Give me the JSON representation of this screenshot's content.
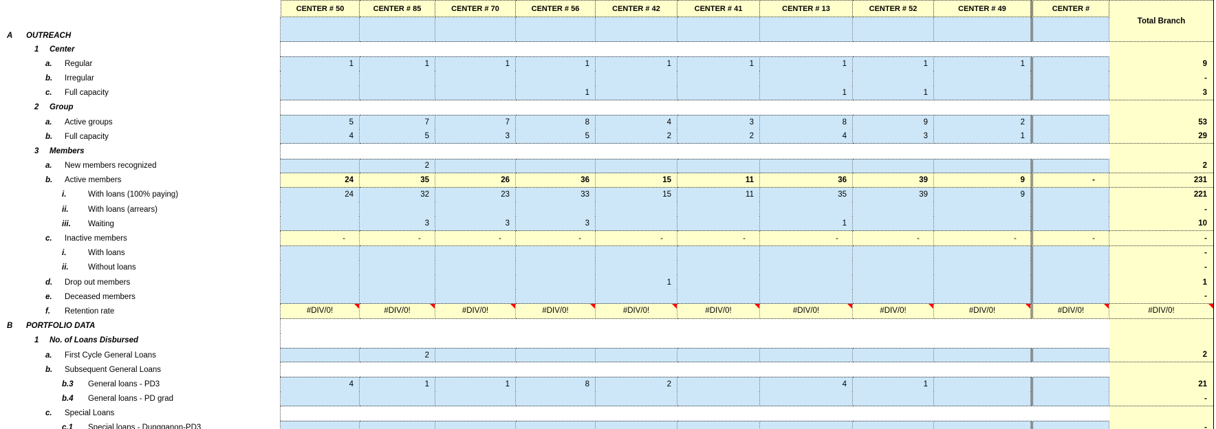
{
  "sheet": {
    "type_hint": "spreadsheet-report",
    "total_header": "Total Branch",
    "error_value": "#DIV/0!",
    "colors": {
      "cell_blue": "#CDE7F9",
      "cell_yellow": "#FFFFCC",
      "comment_red": "#FF0000"
    },
    "columns": [
      "CENTER # 50",
      "CENTER # 85",
      "CENTER # 70",
      "CENTER # 56",
      "CENTER # 42",
      "CENTER # 41",
      "CENTER # 13",
      "CENTER # 52",
      "CENTER # 49",
      "CENTER #"
    ],
    "rows": [
      {
        "m": "A",
        "l": "OUTREACH",
        "lv": 0,
        "bg": "b",
        "band": true,
        "v": [
          "",
          "",
          "",
          "",
          "",
          "",
          "",
          "",
          "",
          ""
        ],
        "t": ""
      },
      {
        "m": "1",
        "l": "Center",
        "lv": 1,
        "bg": "w",
        "t": ""
      },
      {
        "m": "a.",
        "l": "Regular",
        "lv": 2,
        "bg": "b",
        "v": [
          "1",
          "1",
          "1",
          "1",
          "1",
          "1",
          "1",
          "1",
          "1",
          ""
        ],
        "t": "9"
      },
      {
        "m": "b.",
        "l": "Irregular",
        "lv": 2,
        "bg": "b",
        "v": [
          "",
          "",
          "",
          "",
          "",
          "",
          "",
          "",
          "",
          ""
        ],
        "t": "-"
      },
      {
        "m": "c.",
        "l": "Full capacity",
        "lv": 2,
        "bg": "b",
        "v": [
          "",
          "",
          "",
          "1",
          "",
          "",
          "1",
          "1",
          "",
          ""
        ],
        "t": "3"
      },
      {
        "m": "2",
        "l": "Group",
        "lv": 1,
        "bg": "w",
        "t": ""
      },
      {
        "m": "a.",
        "l": "Active groups",
        "lv": 2,
        "bg": "b",
        "v": [
          "5",
          "7",
          "7",
          "8",
          "4",
          "3",
          "8",
          "9",
          "2",
          ""
        ],
        "t": "53"
      },
      {
        "m": "b.",
        "l": "Full capacity",
        "lv": 2,
        "bg": "b",
        "v": [
          "4",
          "5",
          "3",
          "5",
          "2",
          "2",
          "4",
          "3",
          "1",
          ""
        ],
        "t": "29"
      },
      {
        "m": "3",
        "l": "Members",
        "lv": 1,
        "bg": "w",
        "t": ""
      },
      {
        "m": "a.",
        "l": "New members recognized",
        "lv": 2,
        "bg": "b",
        "v": [
          "",
          "2",
          "",
          "",
          "",
          "",
          "",
          "",
          "",
          ""
        ],
        "t": "2"
      },
      {
        "m": "b.",
        "l": "Active members",
        "lv": 2,
        "bg": "y",
        "bold": true,
        "v": [
          "24",
          "35",
          "26",
          "36",
          "15",
          "11",
          "36",
          "39",
          "9",
          "-"
        ],
        "t": "231"
      },
      {
        "m": "i.",
        "l": "With loans (100% paying)",
        "lv": 3,
        "bg": "b",
        "v": [
          "24",
          "32",
          "23",
          "33",
          "15",
          "11",
          "35",
          "39",
          "9",
          ""
        ],
        "t": "221"
      },
      {
        "m": "ii.",
        "l": "With loans (arrears)",
        "lv": 3,
        "bg": "b",
        "v": [
          "",
          "",
          "",
          "",
          "",
          "",
          "",
          "",
          "",
          ""
        ],
        "t": "-"
      },
      {
        "m": "iii.",
        "l": "Waiting",
        "lv": 3,
        "bg": "b",
        "v": [
          "",
          "3",
          "3",
          "3",
          "",
          "",
          "1",
          "",
          "",
          ""
        ],
        "t": "10"
      },
      {
        "m": "c.",
        "l": "Inactive members",
        "lv": 2,
        "bg": "y",
        "v": [
          "-",
          "-",
          "-",
          "-",
          "-",
          "-",
          "-",
          "-",
          "-",
          "-"
        ],
        "t": "-"
      },
      {
        "m": "i.",
        "l": "With loans",
        "lv": 3,
        "bg": "b",
        "v": [
          "",
          "",
          "",
          "",
          "",
          "",
          "",
          "",
          "",
          ""
        ],
        "t": "-"
      },
      {
        "m": "ii.",
        "l": "Without loans",
        "lv": 3,
        "bg": "b",
        "v": [
          "",
          "",
          "",
          "",
          "",
          "",
          "",
          "",
          "",
          ""
        ],
        "t": "-"
      },
      {
        "m": "d.",
        "l": "Drop out members",
        "lv": 2,
        "bg": "b",
        "v": [
          "",
          "",
          "",
          "",
          "1",
          "",
          "",
          "",
          "",
          ""
        ],
        "t": "1"
      },
      {
        "m": "e.",
        "l": "Deceased members",
        "lv": 2,
        "bg": "b",
        "v": [
          "",
          "",
          "",
          "",
          "",
          "",
          "",
          "",
          "",
          ""
        ],
        "t": "-"
      },
      {
        "m": "f.",
        "l": "Retention rate",
        "lv": 2,
        "bg": "y",
        "err": true,
        "v": [
          "#DIV/0!",
          "#DIV/0!",
          "#DIV/0!",
          "#DIV/0!",
          "#DIV/0!",
          "#DIV/0!",
          "#DIV/0!",
          "#DIV/0!",
          "#DIV/0!",
          "#DIV/0!"
        ],
        "t": "#DIV/0!"
      },
      {
        "m": "B",
        "l": "PORTFOLIO DATA",
        "lv": 0,
        "bg": "w",
        "t": ""
      },
      {
        "m": "1",
        "l": "No. of Loans Disbursed",
        "lv": 1,
        "bg": "w",
        "t": ""
      },
      {
        "m": "a.",
        "l": "First Cycle General Loans",
        "lv": 2,
        "bg": "b",
        "v": [
          "",
          "2",
          "",
          "",
          "",
          "",
          "",
          "",
          "",
          ""
        ],
        "t": "2"
      },
      {
        "m": "b.",
        "l": "Subsequent General Loans",
        "lv": 2,
        "bg": "w",
        "t": ""
      },
      {
        "m": "b.3",
        "l": "General loans - PD3",
        "lv": 3,
        "bg": "b",
        "v": [
          "4",
          "1",
          "1",
          "8",
          "2",
          "",
          "4",
          "1",
          "",
          ""
        ],
        "t": "21"
      },
      {
        "m": "b.4",
        "l": "General loans - PD grad",
        "lv": 3,
        "bg": "b",
        "v": [
          "",
          "",
          "",
          "",
          "",
          "",
          "",
          "",
          "",
          ""
        ],
        "t": "-"
      },
      {
        "m": "c.",
        "l": "Special Loans",
        "lv": 2,
        "bg": "w",
        "t": ""
      },
      {
        "m": "c.1",
        "l": "Special loans - Dungganon-PD3",
        "lv": 3,
        "bg": "b",
        "v": [
          "",
          "",
          "",
          "",
          "",
          "",
          "",
          "",
          "",
          ""
        ],
        "t": "-"
      }
    ]
  }
}
